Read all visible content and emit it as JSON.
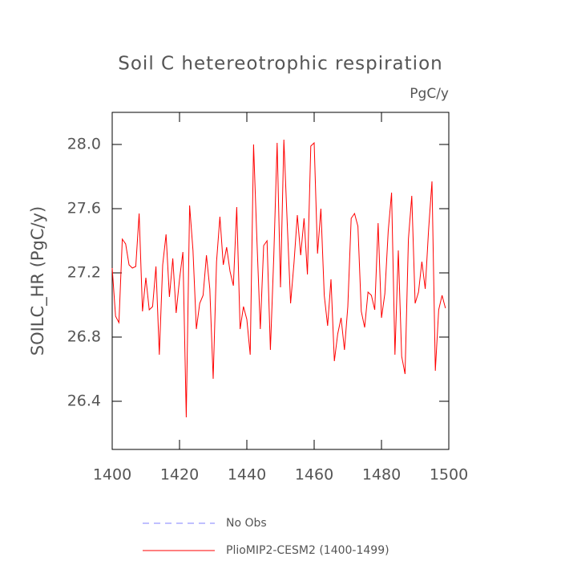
{
  "chart_data": {
    "type": "line",
    "title": "Soil C hetereotrophic respiration",
    "subtitle": "PgC/y",
    "y_label": "SOILC_HR  (PgC/y)",
    "x": [
      1400,
      1401,
      1402,
      1403,
      1404,
      1405,
      1406,
      1407,
      1408,
      1409,
      1410,
      1411,
      1412,
      1413,
      1414,
      1415,
      1416,
      1417,
      1418,
      1419,
      1420,
      1421,
      1422,
      1423,
      1424,
      1425,
      1426,
      1427,
      1428,
      1429,
      1430,
      1431,
      1432,
      1433,
      1434,
      1435,
      1436,
      1437,
      1438,
      1439,
      1440,
      1441,
      1442,
      1443,
      1444,
      1445,
      1446,
      1447,
      1448,
      1449,
      1450,
      1451,
      1452,
      1453,
      1454,
      1455,
      1456,
      1457,
      1458,
      1459,
      1460,
      1461,
      1462,
      1463,
      1464,
      1465,
      1466,
      1467,
      1468,
      1469,
      1470,
      1471,
      1472,
      1473,
      1474,
      1475,
      1476,
      1477,
      1478,
      1479,
      1480,
      1481,
      1482,
      1483,
      1484,
      1485,
      1486,
      1487,
      1488,
      1489,
      1490,
      1491,
      1492,
      1493,
      1494,
      1495,
      1496,
      1497,
      1498,
      1499
    ],
    "series": [
      {
        "name": "No Obs",
        "color": "#8080ff",
        "dashed": true,
        "values": [
          null,
          null,
          null,
          null,
          null,
          null,
          null,
          null,
          null,
          null,
          null,
          null,
          null,
          null,
          null,
          null,
          null,
          null,
          null,
          null,
          null,
          null,
          null,
          null,
          null,
          null,
          null,
          null,
          null,
          null,
          null,
          null,
          null,
          null,
          null,
          null,
          null,
          null,
          null,
          null,
          null,
          null,
          null,
          null,
          null,
          null,
          null,
          null,
          null,
          null,
          null,
          null,
          null,
          null,
          null,
          null,
          null,
          null,
          null,
          null,
          null,
          null,
          null,
          null,
          null,
          null,
          null,
          null,
          null,
          null,
          null,
          null,
          null,
          null,
          null,
          null,
          null,
          null,
          null,
          null,
          null,
          null,
          null,
          null,
          null,
          null,
          null,
          null,
          null,
          null,
          null,
          null,
          null,
          null,
          null,
          null,
          null,
          null,
          null,
          null
        ]
      },
      {
        "name": "PlioMIP2-CESM2 (1400-1499)",
        "color": "#ff0000",
        "dashed": false,
        "values": [
          27.23,
          26.93,
          26.89,
          27.41,
          27.38,
          27.25,
          27.23,
          27.24,
          27.57,
          26.96,
          27.17,
          26.97,
          26.99,
          27.24,
          26.69,
          27.25,
          27.44,
          27.05,
          27.29,
          26.95,
          27.16,
          27.33,
          26.3,
          27.62,
          27.34,
          26.85,
          27.01,
          27.06,
          27.31,
          27.1,
          26.54,
          27.27,
          27.55,
          27.25,
          27.36,
          27.21,
          27.12,
          27.61,
          26.85,
          26.99,
          26.91,
          26.69,
          28.0,
          27.4,
          26.85,
          27.37,
          27.4,
          26.72,
          27.3,
          28.01,
          27.11,
          28.03,
          27.51,
          27.01,
          27.26,
          27.56,
          27.31,
          27.54,
          27.19,
          27.99,
          28.01,
          27.32,
          27.6,
          27.06,
          26.87,
          27.16,
          26.65,
          26.82,
          26.92,
          26.72,
          26.99,
          27.54,
          27.57,
          27.49,
          26.96,
          26.86,
          27.08,
          27.06,
          26.97,
          27.51,
          26.92,
          27.07,
          27.46,
          27.7,
          26.69,
          27.34,
          26.68,
          26.57,
          27.41,
          27.68,
          27.01,
          27.08,
          27.27,
          27.1,
          27.47,
          27.77,
          26.59,
          26.97,
          27.06,
          26.98
        ]
      }
    ],
    "xlim": [
      1400,
      1500
    ],
    "xticks": [
      1400,
      1420,
      1440,
      1460,
      1480,
      1500
    ],
    "ylim": [
      26.1,
      28.2
    ],
    "yticks": [
      26.4,
      26.8,
      27.2,
      27.6,
      {
        "value": 28,
        "label": "28.0"
      }
    ],
    "grid": false,
    "legend": "bottom"
  }
}
